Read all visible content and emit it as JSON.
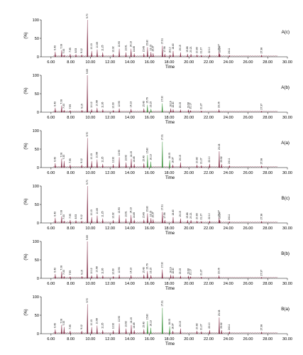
{
  "chart_data": [
    {
      "type": "line",
      "panel_label": "A(c)",
      "xlabel": "Time",
      "ylabel": "(%)",
      "xlim": [
        5.0,
        30.0
      ],
      "ylim": [
        0,
        100
      ],
      "xticks": [
        "6.00",
        "8.00",
        "10.00",
        "12.00",
        "14.00",
        "16.00",
        "18.00",
        "20.00",
        "22.00",
        "24.00",
        "26.00",
        "28.00",
        "30.00"
      ],
      "yticks": [
        "0",
        "50",
        "100"
      ],
      "peaks": [
        {
          "x": 6.43,
          "y": 14,
          "label": "6.43"
        },
        {
          "x": 7.08,
          "y": 18,
          "label": "7.08"
        },
        {
          "x": 7.33,
          "y": 5,
          "label": "7.33"
        },
        {
          "x": 7.95,
          "y": 8,
          "label": "7.95"
        },
        {
          "x": 8.53,
          "y": 7,
          "label": "8.53"
        },
        {
          "x": 9.12,
          "y": 6,
          "label": "9.12"
        },
        {
          "x": 9.7,
          "y": 100,
          "label": "9.70"
        },
        {
          "x": 10.13,
          "y": 16,
          "label": "10.13"
        },
        {
          "x": 10.69,
          "y": 20,
          "label": "10.69"
        },
        {
          "x": 11.25,
          "y": 12,
          "label": "11.25"
        },
        {
          "x": 12.32,
          "y": 8,
          "label": "12.32"
        },
        {
          "x": 12.93,
          "y": 22,
          "label": "12.93"
        },
        {
          "x": 13.61,
          "y": 12,
          "label": "13.61"
        },
        {
          "x": 14.13,
          "y": 22,
          "label": "14.13"
        },
        {
          "x": 14.45,
          "y": 9,
          "label": "14.45"
        },
        {
          "x": 15.43,
          "y": 9,
          "label": "15.43"
        },
        {
          "x": 15.8,
          "y": 26,
          "label": "15.80"
        },
        {
          "x": 16.15,
          "y": 13,
          "label": "16.15"
        },
        {
          "x": 16.37,
          "y": 10,
          "label": "16.37"
        },
        {
          "x": 17.31,
          "y": 30,
          "label": "17.31"
        },
        {
          "x": 17.56,
          "y": 8,
          "label": "17.56"
        },
        {
          "x": 18.1,
          "y": 6,
          "label": "18.10"
        },
        {
          "x": 18.4,
          "y": 16,
          "label": "18.40"
        },
        {
          "x": 19.15,
          "y": 12,
          "label": "19.15"
        },
        {
          "x": 19.86,
          "y": 8,
          "label": "19.86"
        },
        {
          "x": 20.21,
          "y": 8,
          "label": "20.21"
        },
        {
          "x": 20.83,
          "y": 6,
          "label": "20.83"
        },
        {
          "x": 21.27,
          "y": 5,
          "label": "21.27"
        },
        {
          "x": 22.1,
          "y": 6,
          "label": "22.10"
        },
        {
          "x": 23.07,
          "y": 14,
          "label": "23.07"
        },
        {
          "x": 23.14,
          "y": 8,
          "label": "23.14"
        },
        {
          "x": 24.11,
          "y": 4,
          "label": "24.11"
        },
        {
          "x": 27.38,
          "y": 5,
          "label": "27.38"
        }
      ]
    },
    {
      "type": "line",
      "panel_label": "A(b)",
      "xlabel": "Time",
      "ylabel": "(%)",
      "xlim": [
        5.0,
        30.0
      ],
      "ylim": [
        0,
        100
      ],
      "xticks": [
        "6.00",
        "8.00",
        "10.00",
        "12.00",
        "14.00",
        "16.00",
        "18.00",
        "20.00",
        "22.00",
        "24.00",
        "26.00",
        "28.00",
        "30.00"
      ],
      "yticks": [
        "0",
        "50",
        "100"
      ],
      "peaks": [
        {
          "x": 6.43,
          "y": 12,
          "label": "6.43"
        },
        {
          "x": 7.08,
          "y": 18,
          "label": "7.08"
        },
        {
          "x": 7.33,
          "y": 6,
          "label": "7.33"
        },
        {
          "x": 7.95,
          "y": 5,
          "label": "7.95"
        },
        {
          "x": 9.15,
          "y": 6,
          "label": "9.15"
        },
        {
          "x": 9.69,
          "y": 100,
          "label": "9.69"
        },
        {
          "x": 10.12,
          "y": 8,
          "label": "10.12"
        },
        {
          "x": 10.68,
          "y": 12,
          "label": "10.68"
        },
        {
          "x": 11.26,
          "y": 8,
          "label": "11.26"
        },
        {
          "x": 12.33,
          "y": 6,
          "label": "12.33"
        },
        {
          "x": 12.93,
          "y": 10,
          "label": "12.93"
        },
        {
          "x": 14.13,
          "y": 9,
          "label": "14.13"
        },
        {
          "x": 15.43,
          "y": 10,
          "label": "15.43"
        },
        {
          "x": 15.79,
          "y": 20,
          "label": "15.79"
        },
        {
          "x": 16.15,
          "y": 9,
          "label": "16.15"
        },
        {
          "x": 17.3,
          "y": 24,
          "label": "17.30"
        },
        {
          "x": 18.16,
          "y": 10,
          "label": "18.16"
        },
        {
          "x": 18.4,
          "y": 8,
          "label": "18.40"
        },
        {
          "x": 19.15,
          "y": 7,
          "label": "19.15"
        },
        {
          "x": 19.96,
          "y": 7,
          "label": "19.96"
        },
        {
          "x": 20.17,
          "y": 5,
          "label": "20.17"
        },
        {
          "x": 21.27,
          "y": 4,
          "label": "21.27"
        },
        {
          "x": 23.06,
          "y": 8,
          "label": "23.06"
        },
        {
          "x": 27.37,
          "y": 3,
          "label": "27.37"
        }
      ]
    },
    {
      "type": "line",
      "panel_label": "A(a)",
      "xlabel": "Time",
      "ylabel": "(%)",
      "xlim": [
        5.0,
        30.0
      ],
      "ylim": [
        0,
        100
      ],
      "xticks": [
        "6.00",
        "8.00",
        "10.00",
        "12.00",
        "14.00",
        "16.00",
        "18.00",
        "20.00",
        "22.00",
        "24.00",
        "26.00",
        "28.00",
        "30.00"
      ],
      "yticks": [
        "0",
        "50",
        "100"
      ],
      "peaks": [
        {
          "x": 6.43,
          "y": 12,
          "label": "6.43"
        },
        {
          "x": 7.08,
          "y": 24,
          "label": "7.08"
        },
        {
          "x": 7.33,
          "y": 18,
          "label": "7.33"
        },
        {
          "x": 7.95,
          "y": 8,
          "label": "7.95"
        },
        {
          "x": 9.12,
          "y": 8,
          "label": "9.12"
        },
        {
          "x": 9.7,
          "y": 80,
          "label": "9.70"
        },
        {
          "x": 10.13,
          "y": 18,
          "label": "10.13"
        },
        {
          "x": 10.68,
          "y": 22,
          "label": "10.68"
        },
        {
          "x": 11.25,
          "y": 10,
          "label": "11.25"
        },
        {
          "x": 12.32,
          "y": 9,
          "label": "12.32"
        },
        {
          "x": 12.93,
          "y": 28,
          "label": "12.93"
        },
        {
          "x": 13.62,
          "y": 14,
          "label": "13.62"
        },
        {
          "x": 14.15,
          "y": 24,
          "label": "14.15"
        },
        {
          "x": 14.45,
          "y": 10,
          "label": "14.45"
        },
        {
          "x": 15.43,
          "y": 12,
          "label": "15.43"
        },
        {
          "x": 15.8,
          "y": 34,
          "label": "15.80"
        },
        {
          "x": 16.13,
          "y": 16,
          "label": "16.13"
        },
        {
          "x": 17.31,
          "y": 70,
          "label": "17.31"
        },
        {
          "x": 18.05,
          "y": 20,
          "label": "18.05"
        },
        {
          "x": 18.37,
          "y": 8,
          "label": "18.37"
        },
        {
          "x": 19.15,
          "y": 14,
          "label": "19.15"
        },
        {
          "x": 20.82,
          "y": 8,
          "label": "20.82"
        },
        {
          "x": 21.27,
          "y": 6,
          "label": "21.27"
        },
        {
          "x": 22.1,
          "y": 10,
          "label": "22.10"
        },
        {
          "x": 23.08,
          "y": 44,
          "label": "23.08"
        },
        {
          "x": 23.32,
          "y": 10,
          "label": "23.32"
        },
        {
          "x": 24.11,
          "y": 6,
          "label": "24.11"
        },
        {
          "x": 27.38,
          "y": 5,
          "label": "27.38"
        }
      ]
    },
    {
      "type": "line",
      "panel_label": "B(c)",
      "xlabel": "Time",
      "ylabel": "(%)",
      "xlim": [
        5.0,
        30.0
      ],
      "ylim": [
        0,
        100
      ],
      "xticks": [
        "6.00",
        "8.00",
        "10.00",
        "12.00",
        "14.00",
        "16.00",
        "18.00",
        "20.00",
        "22.00",
        "24.00",
        "26.00",
        "28.00",
        "30.00"
      ],
      "yticks": [
        "0",
        "50",
        "100"
      ],
      "peaks": [
        {
          "x": 6.43,
          "y": 14,
          "label": "6.43"
        },
        {
          "x": 7.08,
          "y": 18,
          "label": "7.08"
        },
        {
          "x": 7.33,
          "y": 6,
          "label": "7.33"
        },
        {
          "x": 7.95,
          "y": 8,
          "label": "7.95"
        },
        {
          "x": 8.53,
          "y": 7,
          "label": "8.53"
        },
        {
          "x": 9.12,
          "y": 6,
          "label": "9.12"
        },
        {
          "x": 9.7,
          "y": 100,
          "label": "9.70"
        },
        {
          "x": 10.13,
          "y": 16,
          "label": "10.13"
        },
        {
          "x": 10.69,
          "y": 20,
          "label": "10.69"
        },
        {
          "x": 11.25,
          "y": 12,
          "label": "11.25"
        },
        {
          "x": 12.32,
          "y": 8,
          "label": "12.32"
        },
        {
          "x": 12.93,
          "y": 22,
          "label": "12.93"
        },
        {
          "x": 13.61,
          "y": 12,
          "label": "13.61"
        },
        {
          "x": 14.13,
          "y": 22,
          "label": "14.13"
        },
        {
          "x": 14.45,
          "y": 9,
          "label": "14.45"
        },
        {
          "x": 15.43,
          "y": 9,
          "label": "15.43"
        },
        {
          "x": 15.8,
          "y": 26,
          "label": "15.80"
        },
        {
          "x": 16.15,
          "y": 13,
          "label": "16.15"
        },
        {
          "x": 16.37,
          "y": 10,
          "label": "16.37"
        },
        {
          "x": 17.31,
          "y": 30,
          "label": "17.31"
        },
        {
          "x": 17.56,
          "y": 8,
          "label": "17.56"
        },
        {
          "x": 18.4,
          "y": 16,
          "label": "18.40"
        },
        {
          "x": 19.15,
          "y": 12,
          "label": "19.15"
        },
        {
          "x": 19.86,
          "y": 8,
          "label": "19.86"
        },
        {
          "x": 20.21,
          "y": 8,
          "label": "20.21"
        },
        {
          "x": 20.83,
          "y": 6,
          "label": "20.83"
        },
        {
          "x": 21.27,
          "y": 5,
          "label": "21.27"
        },
        {
          "x": 22.1,
          "y": 6,
          "label": "22.10"
        },
        {
          "x": 23.07,
          "y": 14,
          "label": "23.07"
        },
        {
          "x": 23.14,
          "y": 8,
          "label": "23.14"
        },
        {
          "x": 24.11,
          "y": 4,
          "label": "24.11"
        },
        {
          "x": 27.38,
          "y": 5,
          "label": "27.38"
        }
      ]
    },
    {
      "type": "line",
      "panel_label": "B(b)",
      "xlabel": "Time",
      "ylabel": "(%)",
      "xlim": [
        5.0,
        30.0
      ],
      "ylim": [
        0,
        100
      ],
      "xticks": [
        "6.00",
        "8.00",
        "10.00",
        "12.00",
        "14.00",
        "16.00",
        "18.00",
        "20.00",
        "22.00",
        "24.00",
        "26.00",
        "28.00",
        "30.00"
      ],
      "yticks": [
        "0",
        "50",
        "100"
      ],
      "peaks": [
        {
          "x": 6.43,
          "y": 12,
          "label": "6.43"
        },
        {
          "x": 7.08,
          "y": 18,
          "label": "7.08"
        },
        {
          "x": 7.33,
          "y": 6,
          "label": "7.33"
        },
        {
          "x": 7.95,
          "y": 5,
          "label": "7.95"
        },
        {
          "x": 9.15,
          "y": 6,
          "label": "9.15"
        },
        {
          "x": 9.69,
          "y": 100,
          "label": "9.69"
        },
        {
          "x": 10.12,
          "y": 8,
          "label": "10.12"
        },
        {
          "x": 10.68,
          "y": 12,
          "label": "10.68"
        },
        {
          "x": 11.26,
          "y": 8,
          "label": "11.26"
        },
        {
          "x": 12.33,
          "y": 6,
          "label": "12.33"
        },
        {
          "x": 12.93,
          "y": 10,
          "label": "12.93"
        },
        {
          "x": 14.13,
          "y": 9,
          "label": "14.13"
        },
        {
          "x": 15.43,
          "y": 10,
          "label": "15.43"
        },
        {
          "x": 15.79,
          "y": 20,
          "label": "15.79"
        },
        {
          "x": 16.15,
          "y": 9,
          "label": "16.15"
        },
        {
          "x": 17.3,
          "y": 24,
          "label": "17.30"
        },
        {
          "x": 18.16,
          "y": 10,
          "label": "18.16"
        },
        {
          "x": 18.4,
          "y": 8,
          "label": "18.40"
        },
        {
          "x": 19.15,
          "y": 7,
          "label": "19.15"
        },
        {
          "x": 19.96,
          "y": 7,
          "label": "19.96"
        },
        {
          "x": 20.17,
          "y": 5,
          "label": "20.17"
        },
        {
          "x": 21.27,
          "y": 4,
          "label": "21.27"
        },
        {
          "x": 23.06,
          "y": 8,
          "label": "23.06"
        },
        {
          "x": 27.37,
          "y": 3,
          "label": "27.37"
        }
      ]
    },
    {
      "type": "line",
      "panel_label": "B(a)",
      "xlabel": "Time",
      "ylabel": "(%)",
      "xlim": [
        5.0,
        30.0
      ],
      "ylim": [
        0,
        100
      ],
      "xticks": [
        "6.00",
        "8.00",
        "10.00",
        "12.00",
        "14.00",
        "16.00",
        "18.00",
        "20.00",
        "22.00",
        "24.00",
        "26.00",
        "28.00",
        "30.00"
      ],
      "yticks": [
        "0",
        "50",
        "100"
      ],
      "peaks": [
        {
          "x": 6.43,
          "y": 12,
          "label": "6.43"
        },
        {
          "x": 7.08,
          "y": 24,
          "label": "7.08"
        },
        {
          "x": 7.33,
          "y": 18,
          "label": "7.33"
        },
        {
          "x": 7.95,
          "y": 8,
          "label": "7.95"
        },
        {
          "x": 9.12,
          "y": 8,
          "label": "9.12"
        },
        {
          "x": 9.7,
          "y": 80,
          "label": "9.70"
        },
        {
          "x": 10.13,
          "y": 18,
          "label": "10.13"
        },
        {
          "x": 10.68,
          "y": 22,
          "label": "10.68"
        },
        {
          "x": 11.25,
          "y": 10,
          "label": "11.25"
        },
        {
          "x": 12.32,
          "y": 9,
          "label": "12.32"
        },
        {
          "x": 12.93,
          "y": 28,
          "label": "12.93"
        },
        {
          "x": 13.62,
          "y": 14,
          "label": "13.62"
        },
        {
          "x": 14.15,
          "y": 24,
          "label": "14.15"
        },
        {
          "x": 14.45,
          "y": 10,
          "label": "14.45"
        },
        {
          "x": 15.43,
          "y": 12,
          "label": "15.43"
        },
        {
          "x": 15.8,
          "y": 34,
          "label": "15.80"
        },
        {
          "x": 16.13,
          "y": 16,
          "label": "16.13"
        },
        {
          "x": 17.31,
          "y": 70,
          "label": "17.31"
        },
        {
          "x": 18.05,
          "y": 20,
          "label": "18.05"
        },
        {
          "x": 18.37,
          "y": 8,
          "label": "18.37"
        },
        {
          "x": 19.15,
          "y": 14,
          "label": "19.15"
        },
        {
          "x": 20.82,
          "y": 8,
          "label": "20.82"
        },
        {
          "x": 21.27,
          "y": 6,
          "label": "21.27"
        },
        {
          "x": 22.1,
          "y": 10,
          "label": "22.10"
        },
        {
          "x": 23.08,
          "y": 44,
          "label": "23.08"
        },
        {
          "x": 23.32,
          "y": 10,
          "label": "23.32"
        },
        {
          "x": 24.11,
          "y": 6,
          "label": "24.11"
        },
        {
          "x": 27.38,
          "y": 5,
          "label": "27.38"
        }
      ]
    }
  ],
  "colors": {
    "trace_a": "#7a1f3a",
    "trace_b": "#2e8b2e"
  }
}
